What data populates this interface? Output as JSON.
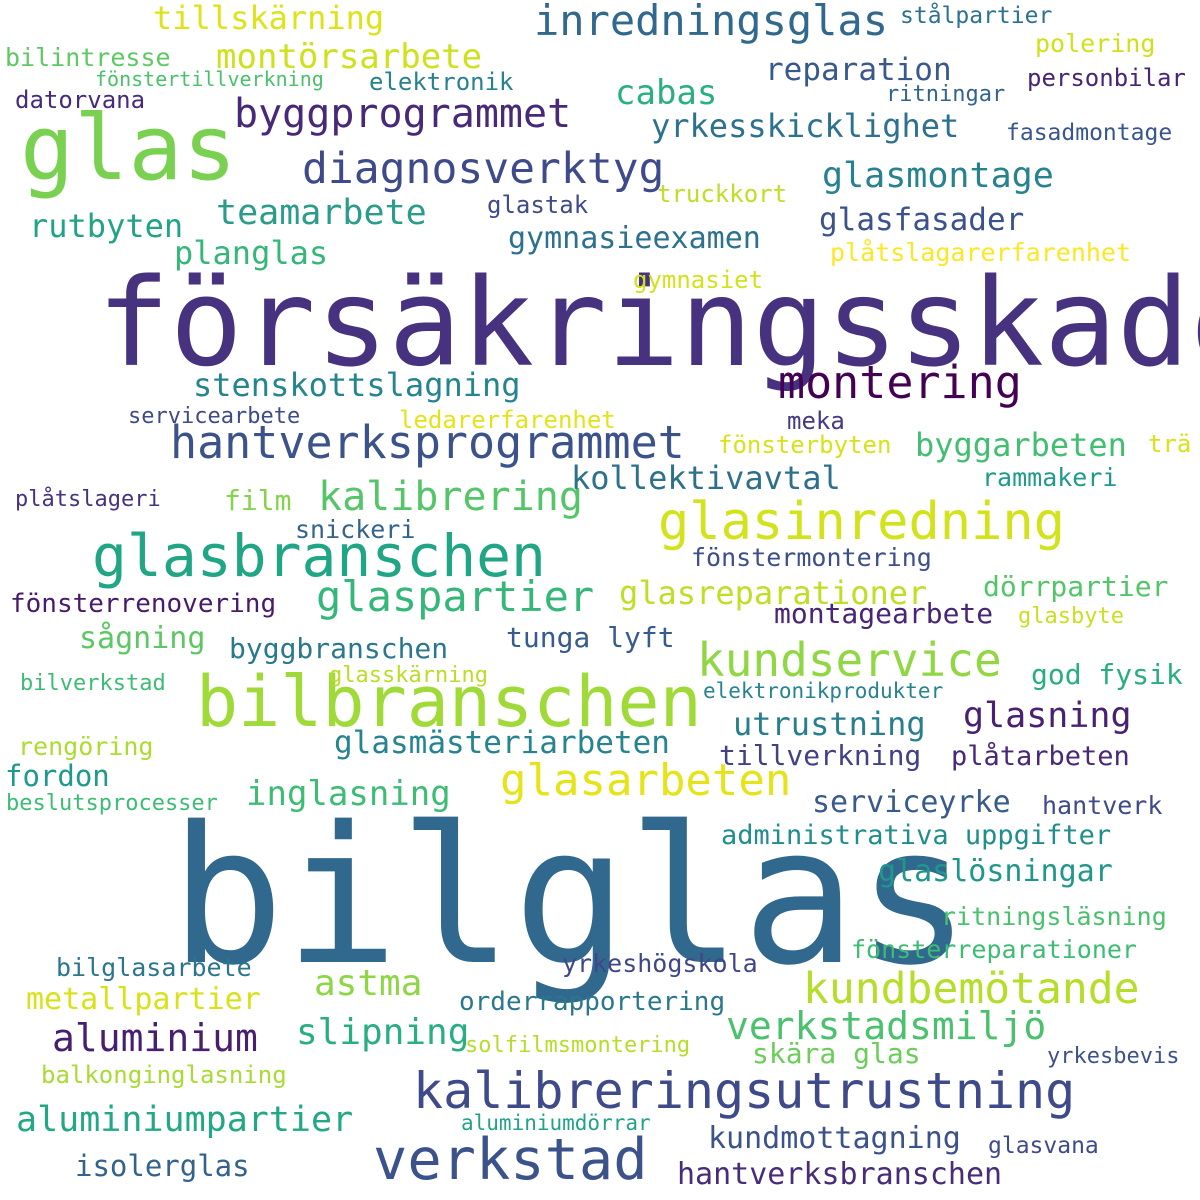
{
  "words": [
    {
      "text": "försäkringsskador",
      "color": "#46327e"
    },
    {
      "text": "bilglas",
      "color": "#31688e"
    },
    {
      "text": "glas",
      "color": "#7ad151"
    },
    {
      "text": "bilbranschen",
      "color": "#a0da39"
    },
    {
      "text": "glasbranschen",
      "color": "#21a685"
    },
    {
      "text": "verkstad",
      "color": "#3b528b"
    },
    {
      "text": "kalibreringsutrustning",
      "color": "#3e4a89"
    },
    {
      "text": "glasinredning",
      "color": "#d2e21b"
    },
    {
      "text": "hantverksprogrammet",
      "color": "#3b528b"
    },
    {
      "text": "montering",
      "color": "#440154"
    },
    {
      "text": "kundservice",
      "color": "#90d743"
    },
    {
      "text": "kundbemötande",
      "color": "#b5de2b"
    },
    {
      "text": "glasarbeten",
      "color": "#e5e419"
    },
    {
      "text": "inredningsglas",
      "color": "#31688e"
    },
    {
      "text": "diagnosverktyg",
      "color": "#3e4a89"
    },
    {
      "text": "glaspartier",
      "color": "#35b779"
    },
    {
      "text": "kalibrering",
      "color": "#54c568"
    },
    {
      "text": "byggprogrammet",
      "color": "#482878"
    },
    {
      "text": "verkstadsmiljö",
      "color": "#4ac16d"
    },
    {
      "text": "aluminium",
      "color": "#481f70"
    },
    {
      "text": "montörsarbete",
      "color": "#cde11d"
    },
    {
      "text": "teamarbete",
      "color": "#2a9c89"
    },
    {
      "text": "glasmontage",
      "color": "#26828e"
    },
    {
      "text": "aluminiumpartier",
      "color": "#22a884"
    },
    {
      "text": "metallpartier",
      "color": "#d8e219"
    },
    {
      "text": "slipning",
      "color": "#28ae80"
    },
    {
      "text": "astma",
      "color": "#8ed645"
    },
    {
      "text": "inglasning",
      "color": "#3dbc74"
    },
    {
      "text": "glasmästeriarbeten",
      "color": "#25848e"
    },
    {
      "text": "glasning",
      "color": "#482173"
    },
    {
      "text": "utrustning",
      "color": "#277f8e"
    },
    {
      "text": "stenskottslagning",
      "color": "#25858e"
    },
    {
      "text": "byggarbeten",
      "color": "#42be71"
    },
    {
      "text": "kollektivavtal",
      "color": "#2d708e"
    },
    {
      "text": "glasreparationer",
      "color": "#bddf26"
    },
    {
      "text": "glasfasader",
      "color": "#3b528b"
    },
    {
      "text": "gymnasieexamen",
      "color": "#2c728e"
    },
    {
      "text": "yrkesskicklighet",
      "color": "#2c718e"
    },
    {
      "text": "reparation",
      "color": "#38598c"
    },
    {
      "text": "cabas",
      "color": "#2ab07f"
    },
    {
      "text": "rutbyten",
      "color": "#20a386"
    },
    {
      "text": "planglas",
      "color": "#35b779"
    },
    {
      "text": "tillskärning",
      "color": "#dde318"
    },
    {
      "text": "kundmottagning",
      "color": "#3b528b"
    },
    {
      "text": "hantverksbranschen",
      "color": "#472c7a"
    },
    {
      "text": "serviceyrke",
      "color": "#375b8d"
    },
    {
      "text": "glaslösningar",
      "color": "#1f978b"
    },
    {
      "text": "administrativa uppgifter",
      "color": "#228d8d"
    },
    {
      "text": "skära glas",
      "color": "#6ccd5a"
    },
    {
      "text": "fordon",
      "color": "#1f9a8a"
    },
    {
      "text": "isolerglas",
      "color": "#33638d"
    },
    {
      "text": "byggbranschen",
      "color": "#2a788e"
    },
    {
      "text": "sågning",
      "color": "#5cc863"
    },
    {
      "text": "montagearbete",
      "color": "#482575"
    },
    {
      "text": "tunga lyft",
      "color": "#365c8d"
    },
    {
      "text": "god fysik",
      "color": "#29af7f"
    },
    {
      "text": "dörrpartier",
      "color": "#52c569"
    },
    {
      "text": "fönstermontering",
      "color": "#3d4e8a"
    },
    {
      "text": "film",
      "color": "#84d44b"
    },
    {
      "text": "snickeri",
      "color": "#33638d"
    },
    {
      "text": "fönsterrenovering",
      "color": "#481a6c"
    },
    {
      "text": "tillverkning",
      "color": "#424186"
    },
    {
      "text": "plåtarbeten",
      "color": "#482878"
    },
    {
      "text": "orderrapportering",
      "color": "#2a788e"
    },
    {
      "text": "bilglasarbete",
      "color": "#2b758e"
    },
    {
      "text": "yrkeshögskola",
      "color": "#3f4788"
    },
    {
      "text": "ritningsläsning",
      "color": "#4ac16d"
    },
    {
      "text": "fönsterreparationer",
      "color": "#3dbc74"
    },
    {
      "text": "rammakeri",
      "color": "#1e9b8a"
    },
    {
      "text": "ledarerfarenhet",
      "color": "#e2e418"
    },
    {
      "text": "fönsterbyten",
      "color": "#d8e219"
    },
    {
      "text": "meka",
      "color": "#443a83"
    },
    {
      "text": "servicearbete",
      "color": "#3e4a89"
    },
    {
      "text": "plåtslageri",
      "color": "#46327e"
    },
    {
      "text": "gymnasiet",
      "color": "#d2e21b"
    },
    {
      "text": "plåtslagarerfarenhet",
      "color": "#fde725"
    },
    {
      "text": "truckkort",
      "color": "#bddf26"
    },
    {
      "text": "glastak",
      "color": "#3e4a89"
    },
    {
      "text": "datorvana",
      "color": "#472a7a"
    },
    {
      "text": "bilintresse",
      "color": "#5ec962"
    },
    {
      "text": "fönstertillverkning",
      "color": "#4ac16d"
    },
    {
      "text": "elektronik",
      "color": "#26828e"
    },
    {
      "text": "stålpartier",
      "color": "#2c728e"
    },
    {
      "text": "polering",
      "color": "#d0e11c"
    },
    {
      "text": "personbilar",
      "color": "#482475"
    },
    {
      "text": "ritningar",
      "color": "#33638d"
    },
    {
      "text": "fasadmontage",
      "color": "#39568c"
    },
    {
      "text": "trä",
      "color": "#d8e219"
    },
    {
      "text": "glasbyte",
      "color": "#c8e020"
    },
    {
      "text": "glasskärning",
      "color": "#bade28"
    },
    {
      "text": "elektronikprodukter",
      "color": "#25848e"
    },
    {
      "text": "bilverkstad",
      "color": "#3dbc74"
    },
    {
      "text": "rengöring",
      "color": "#addc30"
    },
    {
      "text": "beslutsprocesser",
      "color": "#3dbc74"
    },
    {
      "text": "hantverk",
      "color": "#3e4a89"
    },
    {
      "text": "solfilmsmontering",
      "color": "#b5de2b"
    },
    {
      "text": "balkonginglasning",
      "color": "#a8db34"
    },
    {
      "text": "yrkesbevis",
      "color": "#3b528b"
    },
    {
      "text": "aluminiumdörrar",
      "color": "#20a386"
    },
    {
      "text": "glasvana",
      "color": "#3e4a89"
    }
  ]
}
